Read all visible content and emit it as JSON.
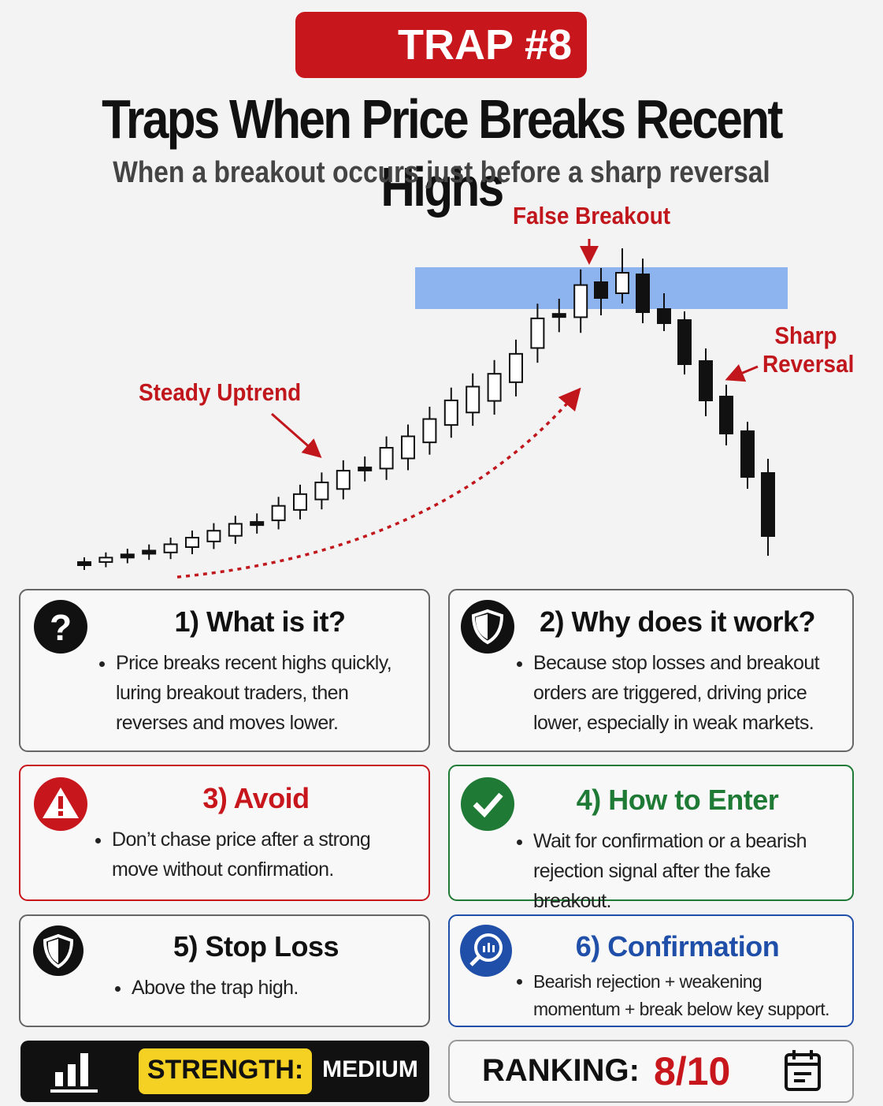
{
  "badge": "TRAP #8",
  "title": "Traps When Price Breaks Recent Highs",
  "subtitle": "When a breakout occurs just before a sharp reversal",
  "illustration": {
    "annotations": [
      "False Breakout",
      "Steady Uptrend",
      "Sharp Reversal"
    ]
  },
  "cards": [
    {
      "heading": "1) What is it?",
      "bullets": [
        "Price breaks recent highs quickly, luring breakout traders, then reverses and moves lower."
      ]
    },
    {
      "heading": "2) Why does it work?",
      "bullets": [
        "Because stop losses and breakout orders are triggered, driving price lower, especially in weak markets."
      ]
    },
    {
      "heading": "3) Avoid",
      "bullets": [
        "Don’t chase price after a strong move without confirmation."
      ]
    },
    {
      "heading": "4) How to Enter",
      "bullets": [
        "Wait for confirmation or a bearish rejection signal after the fake breakout."
      ]
    },
    {
      "heading": "5) Stop Loss",
      "bullets": [
        "Above the trap high."
      ]
    },
    {
      "heading": "6) Confirmation",
      "bullets": [
        "Bearish rejection + weakening momentum + break below key support."
      ]
    }
  ],
  "strength": {
    "label": "STRENGTH:",
    "value": "MEDIUM"
  },
  "ranking": {
    "label": "RANKING:",
    "value": "8/10"
  }
}
